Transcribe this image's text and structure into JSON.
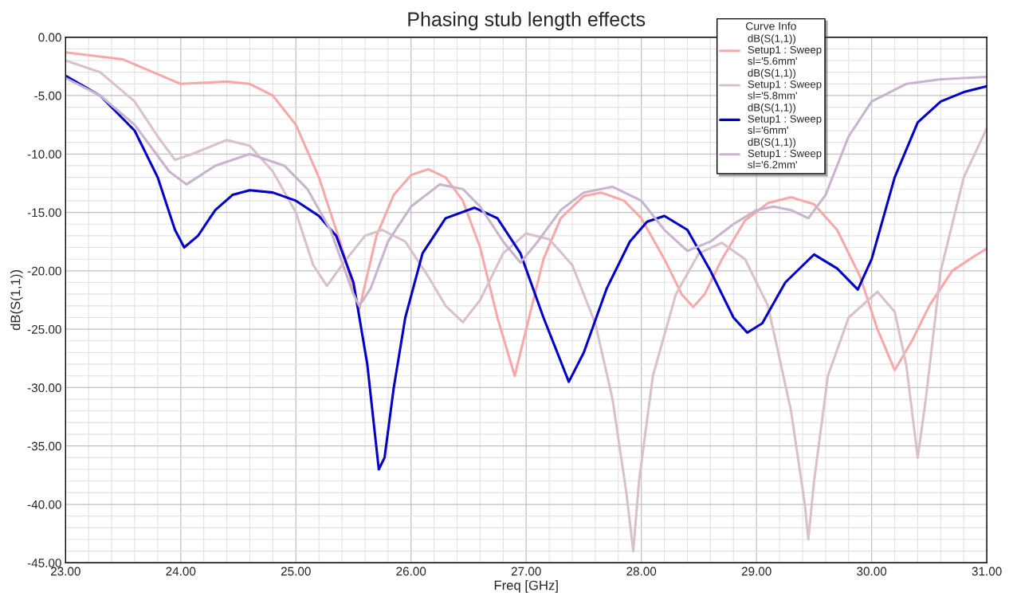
{
  "chart_data": {
    "type": "line",
    "title": "Phasing stub length effects",
    "xlabel": "Freq [GHz]",
    "ylabel": "dB(S(1,1))",
    "legend_title": "Curve Info",
    "legend": "top right",
    "grid": true,
    "marker": "none",
    "line_style": "solid",
    "xlim": [
      23,
      31
    ],
    "ylim": [
      -45,
      0
    ],
    "xticks": [
      {
        "value": 23,
        "label": "23.00"
      },
      {
        "value": 24,
        "label": "24.00"
      },
      {
        "value": 25,
        "label": "25.00"
      },
      {
        "value": 26,
        "label": "26.00"
      },
      {
        "value": 27,
        "label": "27.00"
      },
      {
        "value": 28,
        "label": "28.00"
      },
      {
        "value": 29,
        "label": "29.00"
      },
      {
        "value": 30,
        "label": "30.00"
      },
      {
        "value": 31,
        "label": "31.00"
      }
    ],
    "yticks": [
      {
        "value": 0,
        "label": "0.00"
      },
      {
        "value": -5,
        "label": "-5.00"
      },
      {
        "value": -10,
        "label": "-10.00"
      },
      {
        "value": -15,
        "label": "-15.00"
      },
      {
        "value": -20,
        "label": "-20.00"
      },
      {
        "value": -25,
        "label": "-25.00"
      },
      {
        "value": -30,
        "label": "-30.00"
      },
      {
        "value": -35,
        "label": "-35.00"
      },
      {
        "value": -40,
        "label": "-40.00"
      },
      {
        "value": -45,
        "label": "-45.00"
      }
    ],
    "series": [
      {
        "name": "dB(S(1,1))\nSetup1 : Sweep\nsl='5.6mm'",
        "color": "#f8a8a8",
        "x": [
          23,
          23.5,
          24.0,
          24.4,
          24.6,
          24.8,
          25.0,
          25.2,
          25.4,
          25.55,
          25.7,
          25.85,
          26.0,
          26.15,
          26.3,
          26.45,
          26.6,
          26.75,
          26.9,
          27.0,
          27.15,
          27.3,
          27.5,
          27.65,
          27.85,
          28.0,
          28.2,
          28.35,
          28.45,
          28.55,
          28.7,
          28.9,
          29.1,
          29.3,
          29.5,
          29.7,
          29.9,
          30.05,
          30.2,
          30.35,
          30.5,
          30.7,
          30.9,
          31
        ],
        "values": [
          -1.3,
          -1.9,
          -4.0,
          -3.8,
          -4.0,
          -5.0,
          -7.5,
          -12,
          -18,
          -23.3,
          -17,
          -13.5,
          -11.8,
          -11.3,
          -12,
          -14,
          -18,
          -24,
          -29,
          -25,
          -19,
          -15.5,
          -13.6,
          -13.3,
          -14,
          -15.5,
          -19,
          -22,
          -23.1,
          -22,
          -19,
          -15.7,
          -14.2,
          -13.7,
          -14.3,
          -16.5,
          -20.5,
          -25,
          -28.5,
          -26,
          -23,
          -20,
          -18.7,
          -18.1
        ]
      },
      {
        "name": "dB(S(1,1))\nSetup1 : Sweep\nsl='5.8mm'",
        "color": "#d8c0cc",
        "x": [
          23,
          23.3,
          23.6,
          23.8,
          23.95,
          24.1,
          24.4,
          24.6,
          24.8,
          25.0,
          25.15,
          25.27,
          25.4,
          25.6,
          25.75,
          25.95,
          26.15,
          26.3,
          26.45,
          26.6,
          26.8,
          27.0,
          27.2,
          27.4,
          27.6,
          27.75,
          27.87,
          27.93,
          27.98,
          28.1,
          28.3,
          28.5,
          28.7,
          28.9,
          29.1,
          29.3,
          29.42,
          29.45,
          29.5,
          29.62,
          29.8,
          30.05,
          30.2,
          30.3,
          30.4,
          30.47,
          30.6,
          30.8,
          31
        ],
        "values": [
          -2,
          -3,
          -5.5,
          -8.5,
          -10.5,
          -10,
          -8.8,
          -9.3,
          -11.5,
          -15,
          -19.5,
          -21.3,
          -19.5,
          -17,
          -16.5,
          -17.5,
          -20.5,
          -23,
          -24.4,
          -22.5,
          -18.5,
          -16.8,
          -17.3,
          -19.5,
          -24.5,
          -31,
          -39,
          -44,
          -38,
          -29,
          -22,
          -18.5,
          -17.6,
          -19,
          -23,
          -32,
          -40,
          -43,
          -38,
          -29,
          -24,
          -21.8,
          -23.5,
          -28,
          -36,
          -31,
          -20,
          -12,
          -7.8
        ]
      },
      {
        "name": "dB(S(1,1))\nSetup1 : Sweep\nsl='6mm'",
        "color": "#0000c8",
        "x": [
          23,
          23.3,
          23.6,
          23.8,
          23.95,
          24.03,
          24.15,
          24.3,
          24.45,
          24.6,
          24.8,
          25.0,
          25.2,
          25.35,
          25.5,
          25.62,
          25.72,
          25.77,
          25.85,
          25.95,
          26.1,
          26.3,
          26.55,
          26.75,
          26.95,
          27.15,
          27.37,
          27.5,
          27.7,
          27.9,
          28.05,
          28.2,
          28.4,
          28.6,
          28.8,
          28.92,
          29.05,
          29.25,
          29.5,
          29.7,
          29.88,
          30.0,
          30.2,
          30.4,
          30.6,
          30.8,
          31
        ],
        "values": [
          -3.3,
          -5,
          -8,
          -12,
          -16.5,
          -18,
          -17,
          -14.8,
          -13.5,
          -13.1,
          -13.3,
          -14,
          -15.3,
          -17,
          -21,
          -28,
          -37,
          -36,
          -30,
          -24,
          -18.5,
          -15.5,
          -14.6,
          -15.5,
          -18.5,
          -24,
          -29.5,
          -27,
          -21.5,
          -17.5,
          -15.8,
          -15.3,
          -16.5,
          -20,
          -24,
          -25.3,
          -24.5,
          -21,
          -18.6,
          -19.8,
          -21.6,
          -19,
          -12,
          -7.3,
          -5.5,
          -4.7,
          -4.2
        ]
      },
      {
        "name": "dB(S(1,1))\nSetup1 : Sweep\nsl='6.2mm'",
        "color": "#c8b4cc",
        "x": [
          23,
          23.3,
          23.6,
          23.9,
          24.05,
          24.3,
          24.6,
          24.9,
          25.1,
          25.3,
          25.5,
          25.55,
          25.65,
          25.8,
          26.0,
          26.25,
          26.45,
          26.6,
          26.8,
          26.95,
          27.1,
          27.3,
          27.5,
          27.75,
          28.0,
          28.2,
          28.4,
          28.6,
          28.8,
          29.0,
          29.15,
          29.3,
          29.45,
          29.6,
          29.8,
          30.0,
          30.3,
          30.6,
          31
        ],
        "values": [
          -3.5,
          -5,
          -7.5,
          -11.5,
          -12.6,
          -11,
          -10,
          -11,
          -13,
          -16.5,
          -22,
          -23,
          -21.5,
          -17.5,
          -14.5,
          -12.6,
          -13,
          -14.5,
          -17.5,
          -19.3,
          -17.5,
          -14.8,
          -13.3,
          -12.8,
          -14,
          -16.5,
          -18.3,
          -17.5,
          -16,
          -14.8,
          -14.5,
          -14.8,
          -15.5,
          -13.5,
          -8.5,
          -5.5,
          -4,
          -3.6,
          -3.4
        ]
      }
    ]
  }
}
